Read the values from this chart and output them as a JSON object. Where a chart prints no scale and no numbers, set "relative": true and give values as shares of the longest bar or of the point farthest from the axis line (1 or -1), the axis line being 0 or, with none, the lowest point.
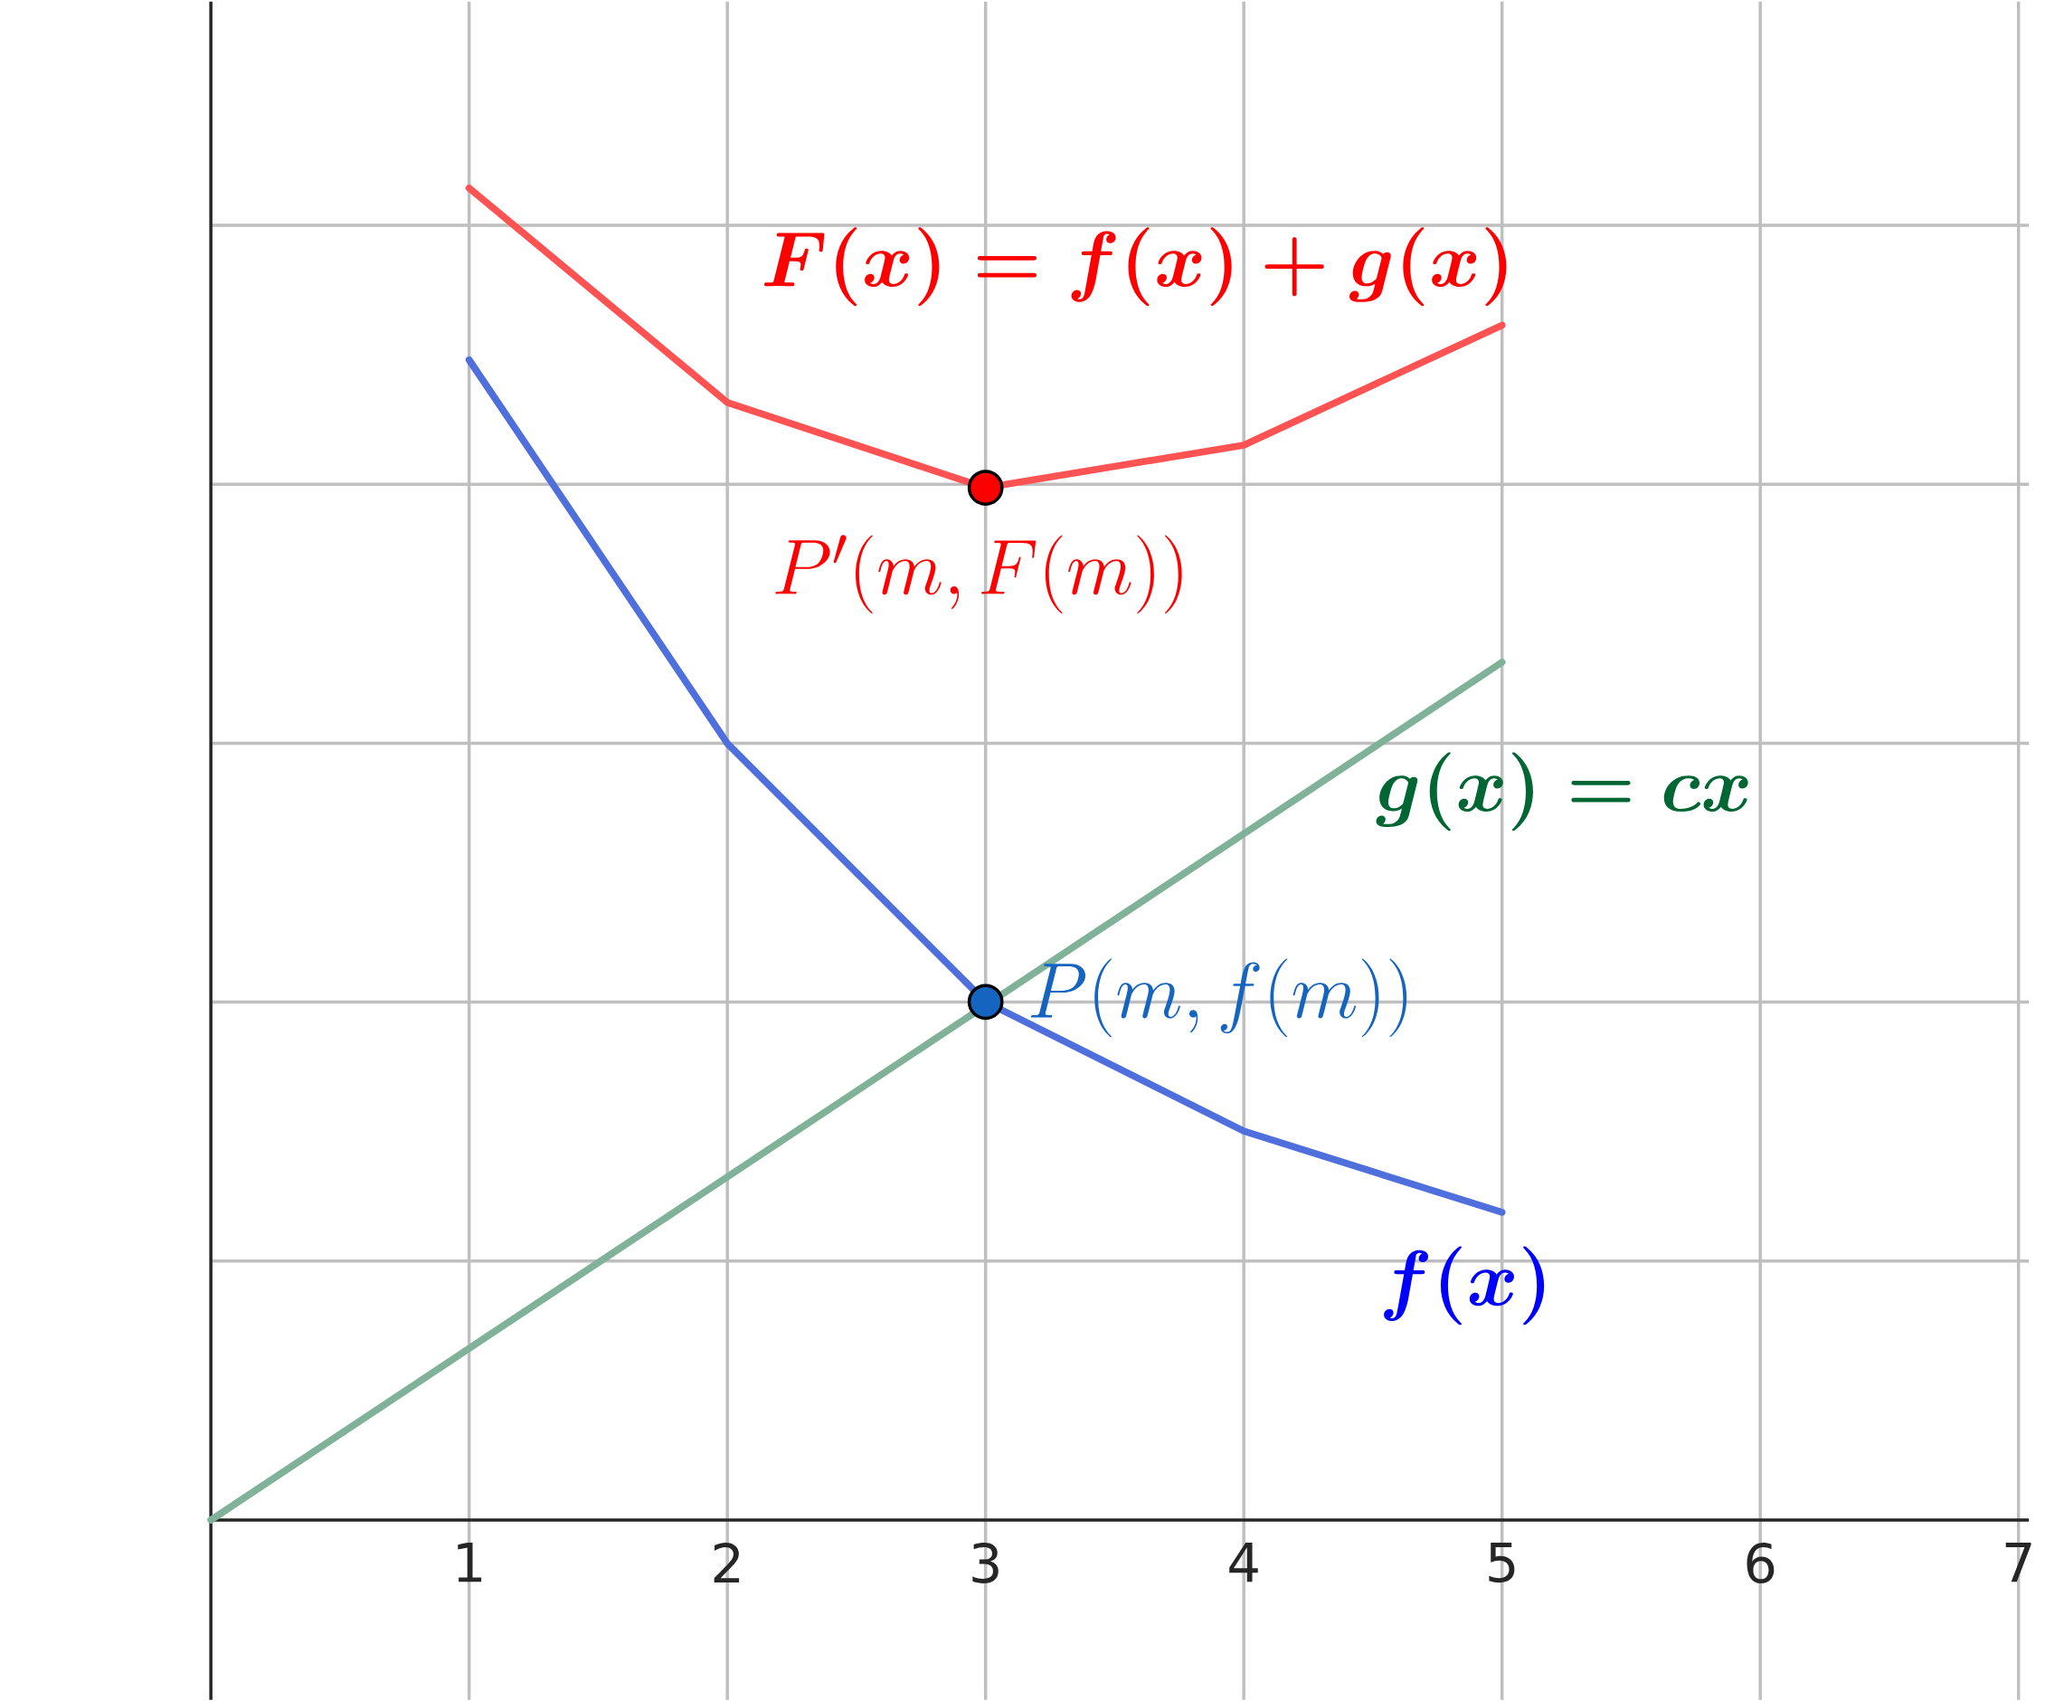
{
  "chart_data": {
    "type": "line",
    "relative": true,
    "x": [
      1,
      2,
      3,
      4,
      5
    ],
    "xlim": [
      0,
      7.04
    ],
    "xticks": [
      1,
      2,
      3,
      4,
      5,
      6,
      7
    ],
    "grid": true,
    "line_style": "solid",
    "marker": "none",
    "series": [
      {
        "color": "#ff5252",
        "values": [
          1,
          0.839,
          0.775,
          0.807,
          0.897
        ]
      },
      {
        "color": "#4f6fdc",
        "values": [
          0.871,
          0.583,
          0.389,
          0.292,
          0.231
        ]
      },
      {
        "color": "#7fb298",
        "x": [
          0,
          5
        ],
        "values": [
          0,
          0.644
        ]
      },
      {
        "type": "scatter",
        "marker": "circle",
        "x": [
          3,
          3
        ],
        "values": [
          0.775,
          0.389
        ],
        "colors": [
          "#ff0000",
          "#1565c0"
        ]
      }
    ],
    "annotations": [
      "\\boldsymbol{F(x) = f(x) + g(x)}",
      "P'(m, F(m))",
      "\\boldsymbol{g(x) = cx}",
      "P(m, f(m))",
      "\\boldsymbol{f(x)}"
    ]
  }
}
